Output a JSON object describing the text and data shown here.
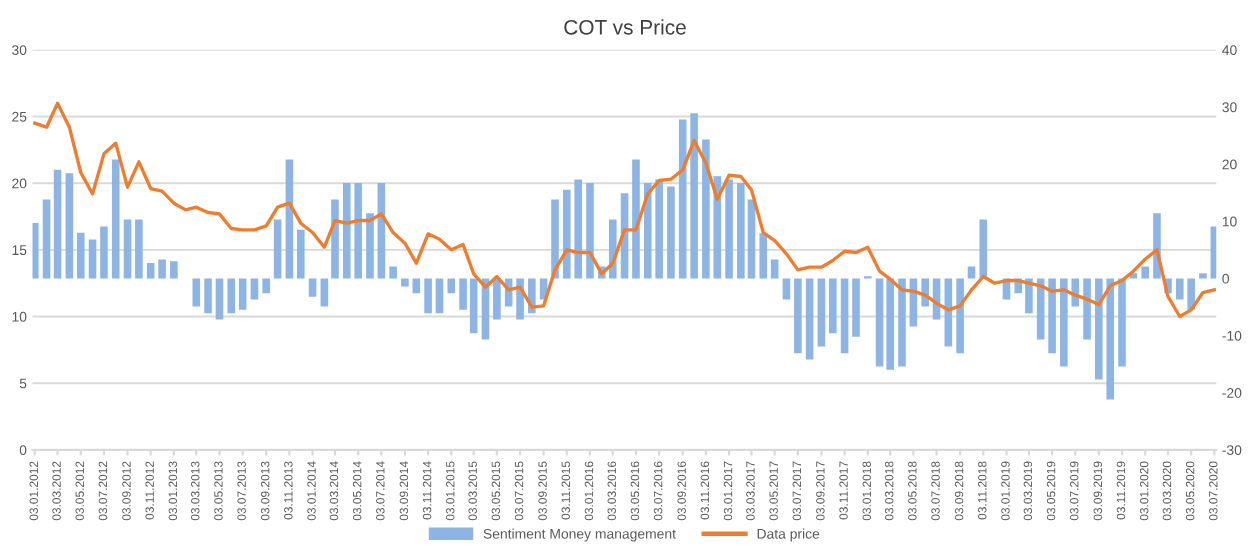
{
  "chart_data": {
    "type": "bar",
    "title": "COT vs Price",
    "grid": "y",
    "legend": "bottom",
    "x": [
      "2012-01-03",
      "2012-02-03",
      "2012-03-03",
      "2012-04-03",
      "2012-05-03",
      "2012-06-03",
      "2012-07-03",
      "2012-08-03",
      "2012-09-03",
      "2012-10-03",
      "2012-11-03",
      "2012-12-03",
      "2013-01-03",
      "2013-02-03",
      "2013-03-03",
      "2013-04-03",
      "2013-05-03",
      "2013-06-03",
      "2013-07-03",
      "2013-08-03",
      "2013-09-03",
      "2013-10-03",
      "2013-11-03",
      "2013-12-03",
      "2014-01-03",
      "2014-02-03",
      "2014-03-03",
      "2014-04-03",
      "2014-05-03",
      "2014-06-03",
      "2014-07-03",
      "2014-08-03",
      "2014-09-03",
      "2014-10-03",
      "2014-11-03",
      "2014-12-03",
      "2015-01-03",
      "2015-02-03",
      "2015-03-03",
      "2015-04-03",
      "2015-05-03",
      "2015-06-03",
      "2015-07-03",
      "2015-08-03",
      "2015-09-03",
      "2015-10-03",
      "2015-11-03",
      "2015-12-03",
      "2016-01-03",
      "2016-02-03",
      "2016-03-03",
      "2016-04-03",
      "2016-05-03",
      "2016-06-03",
      "2016-07-03",
      "2016-08-03",
      "2016-09-03",
      "2016-10-03",
      "2016-11-03",
      "2016-12-03",
      "2017-01-03",
      "2017-02-03",
      "2017-03-03",
      "2017-04-03",
      "2017-05-03",
      "2017-06-03",
      "2017-07-03",
      "2017-08-03",
      "2017-09-03",
      "2017-10-03",
      "2017-11-03",
      "2017-12-03",
      "2018-01-03",
      "2018-02-03",
      "2018-03-03",
      "2018-04-03",
      "2018-05-03",
      "2018-06-03",
      "2018-07-03",
      "2018-08-03",
      "2018-09-03",
      "2018-10-03",
      "2018-11-03",
      "2018-12-03",
      "2019-01-03",
      "2019-02-03",
      "2019-03-03",
      "2019-04-03",
      "2019-05-03",
      "2019-06-03",
      "2019-07-03",
      "2019-08-03",
      "2019-09-03",
      "2019-10-03",
      "2019-11-03",
      "2019-12-03",
      "2020-01-03",
      "2020-02-03",
      "2020-03-03",
      "2020-04-03",
      "2020-05-03",
      "2020-06-03",
      "2020-07-03"
    ],
    "series": [
      {
        "name": "Sentiment Money management",
        "axis": "y2",
        "color": "#8db4e2",
        "values": [
          9.7,
          13.8,
          19.0,
          18.4,
          8,
          6.8,
          9.1,
          20.8,
          10.3,
          10.3,
          2.7,
          3.3,
          3.0,
          null,
          -4.9,
          -6.1,
          -7.2,
          -6.1,
          -5.5,
          -3.7,
          -2.6,
          10.3,
          20.8,
          8.5,
          -3.2,
          -4.9,
          13.8,
          16.7,
          16.7,
          11.4,
          16.7,
          2.1,
          -1.4,
          -2.6,
          -6.1,
          -6.1,
          -2.6,
          -5.5,
          -9.6,
          -10.7,
          -7.2,
          -4.9,
          -7.2,
          -6.1,
          -3.7,
          13.8,
          15.5,
          17.3,
          16.7,
          2.1,
          10.3,
          14.9,
          20.8,
          16.7,
          17.3,
          16.1,
          27.8,
          28.9,
          24.3,
          17.9,
          17.3,
          16.7,
          13.8,
          7.9,
          3.3,
          -3.7,
          -13.1,
          -14.2,
          -11.9,
          -9.6,
          -13.1,
          -10.2,
          0.4,
          -15.4,
          -16.0,
          -15.4,
          -8.4,
          -4.9,
          -7.2,
          -11.9,
          -13.1,
          2.1,
          10.3,
          null,
          -3.7,
          -2.6,
          -6.1,
          -10.7,
          -13.1,
          -15.4,
          -4.9,
          -10.7,
          -17.7,
          -21.2,
          -15.4,
          0.9,
          2.1,
          11.4,
          -2.6,
          -3.7,
          -5.5,
          0.9,
          9.1
        ]
      },
      {
        "name": "Data price",
        "type": "line",
        "color": "#ed7d31",
        "values": [
          24.5,
          24.2,
          26,
          24.2,
          20.8,
          19.2,
          22.2,
          23,
          19.7,
          21.6,
          19.6,
          19.4,
          18.5,
          18.0,
          18.2,
          17.8,
          17.7,
          16.6,
          16.5,
          16.5,
          16.8,
          18.2,
          18.5,
          17.0,
          16.3,
          15.2,
          17.2,
          17.0,
          17.2,
          17.2,
          17.7,
          16.3,
          15.5,
          14.0,
          16.2,
          15.8,
          15.0,
          15.4,
          13.2,
          12.2,
          13.0,
          12.0,
          12.2,
          10.7,
          10.8,
          13.5,
          15.0,
          14.8,
          14.8,
          13.2,
          14.0,
          16.5,
          16.5,
          19.2,
          20.2,
          20.3,
          21.0,
          23.2,
          21.5,
          18.8,
          20.6,
          20.5,
          19.5,
          16.3,
          15.7,
          14.7,
          13.5,
          13.7,
          13.7,
          14.2,
          14.9,
          14.8,
          15.2,
          13.4,
          12.8,
          12.0,
          11.9,
          11.6,
          11.0,
          10.5,
          10.8,
          12.0,
          13.0,
          12.5,
          12.7,
          12.7,
          12.5,
          12.3,
          11.9,
          12.0,
          11.6,
          11.3,
          10.9,
          12.3,
          12.7,
          13.4,
          14.3,
          15.0,
          11.5,
          10.0,
          10.5,
          11.8,
          12.0
        ]
      }
    ],
    "xlim": [
      "2011-12-28",
      "2020-07-08"
    ],
    "xticks": [
      {
        "value": "2012-01-03",
        "label": "03.01.2012"
      },
      {
        "value": "2012-03-03",
        "label": "03.03.2012"
      },
      {
        "value": "2012-05-03",
        "label": "03.05.2012"
      },
      {
        "value": "2012-07-03",
        "label": "03.07.2012"
      },
      {
        "value": "2012-09-03",
        "label": "03.09.2012"
      },
      {
        "value": "2012-11-03",
        "label": "03.11.2012"
      },
      {
        "value": "2013-01-03",
        "label": "03.01.2013"
      },
      {
        "value": "2013-03-03",
        "label": "03.03.2013"
      },
      {
        "value": "2013-05-03",
        "label": "03.05.2013"
      },
      {
        "value": "2013-07-03",
        "label": "03.07.2013"
      },
      {
        "value": "2013-09-03",
        "label": "03.09.2013"
      },
      {
        "value": "2013-11-03",
        "label": "03.11.2013"
      },
      {
        "value": "2014-01-03",
        "label": "03.01.2014"
      },
      {
        "value": "2014-03-03",
        "label": "03.03.2014"
      },
      {
        "value": "2014-05-03",
        "label": "03.05.2014"
      },
      {
        "value": "2014-07-03",
        "label": "03.07.2014"
      },
      {
        "value": "2014-09-03",
        "label": "03.09.2014"
      },
      {
        "value": "2014-11-03",
        "label": "03.11.2014"
      },
      {
        "value": "2015-01-03",
        "label": "03.01.2015"
      },
      {
        "value": "2015-03-03",
        "label": "03.03.2015"
      },
      {
        "value": "2015-05-03",
        "label": "03.05.2015"
      },
      {
        "value": "2015-07-03",
        "label": "03.07.2015"
      },
      {
        "value": "2015-09-03",
        "label": "03.09.2015"
      },
      {
        "value": "2015-11-03",
        "label": "03.11.2015"
      },
      {
        "value": "2016-01-03",
        "label": "03.01.2016"
      },
      {
        "value": "2016-03-03",
        "label": "03.03.2016"
      },
      {
        "value": "2016-05-03",
        "label": "03.05.2016"
      },
      {
        "value": "2016-07-03",
        "label": "03.07.2016"
      },
      {
        "value": "2016-09-03",
        "label": "03.09.2016"
      },
      {
        "value": "2016-11-03",
        "label": "03.11.2016"
      },
      {
        "value": "2017-01-03",
        "label": "03.01.2017"
      },
      {
        "value": "2017-03-03",
        "label": "03.03.2017"
      },
      {
        "value": "2017-05-03",
        "label": "03.05.2017"
      },
      {
        "value": "2017-07-03",
        "label": "03.07.2017"
      },
      {
        "value": "2017-09-03",
        "label": "03.09.2017"
      },
      {
        "value": "2017-11-03",
        "label": "03.11.2017"
      },
      {
        "value": "2018-01-03",
        "label": "03.01.2018"
      },
      {
        "value": "2018-03-03",
        "label": "03.03.2018"
      },
      {
        "value": "2018-05-03",
        "label": "03.05.2018"
      },
      {
        "value": "2018-07-03",
        "label": "03.07.2018"
      },
      {
        "value": "2018-09-03",
        "label": "03.09.2018"
      },
      {
        "value": "2018-11-03",
        "label": "03.11.2018"
      },
      {
        "value": "2019-01-03",
        "label": "03.01.2019"
      },
      {
        "value": "2019-03-03",
        "label": "03.03.2019"
      },
      {
        "value": "2019-05-03",
        "label": "03.05.2019"
      },
      {
        "value": "2019-07-03",
        "label": "03.07.2019"
      },
      {
        "value": "2019-09-03",
        "label": "03.09.2019"
      },
      {
        "value": "2019-11-03",
        "label": "03.11.2019"
      },
      {
        "value": "2020-01-03",
        "label": "03.01.2020"
      },
      {
        "value": "2020-03-03",
        "label": "03.03.2020"
      },
      {
        "value": "2020-05-03",
        "label": "03.05.2020"
      },
      {
        "value": "2020-07-03",
        "label": "03.07.2020"
      }
    ],
    "ylim": [
      0,
      30
    ],
    "yticks": [
      0,
      5,
      10,
      15,
      20,
      25,
      30
    ],
    "y2lim": [
      -30,
      40
    ],
    "y2ticks": [
      -30,
      -20,
      -10,
      0,
      10,
      20,
      30,
      40
    ]
  }
}
